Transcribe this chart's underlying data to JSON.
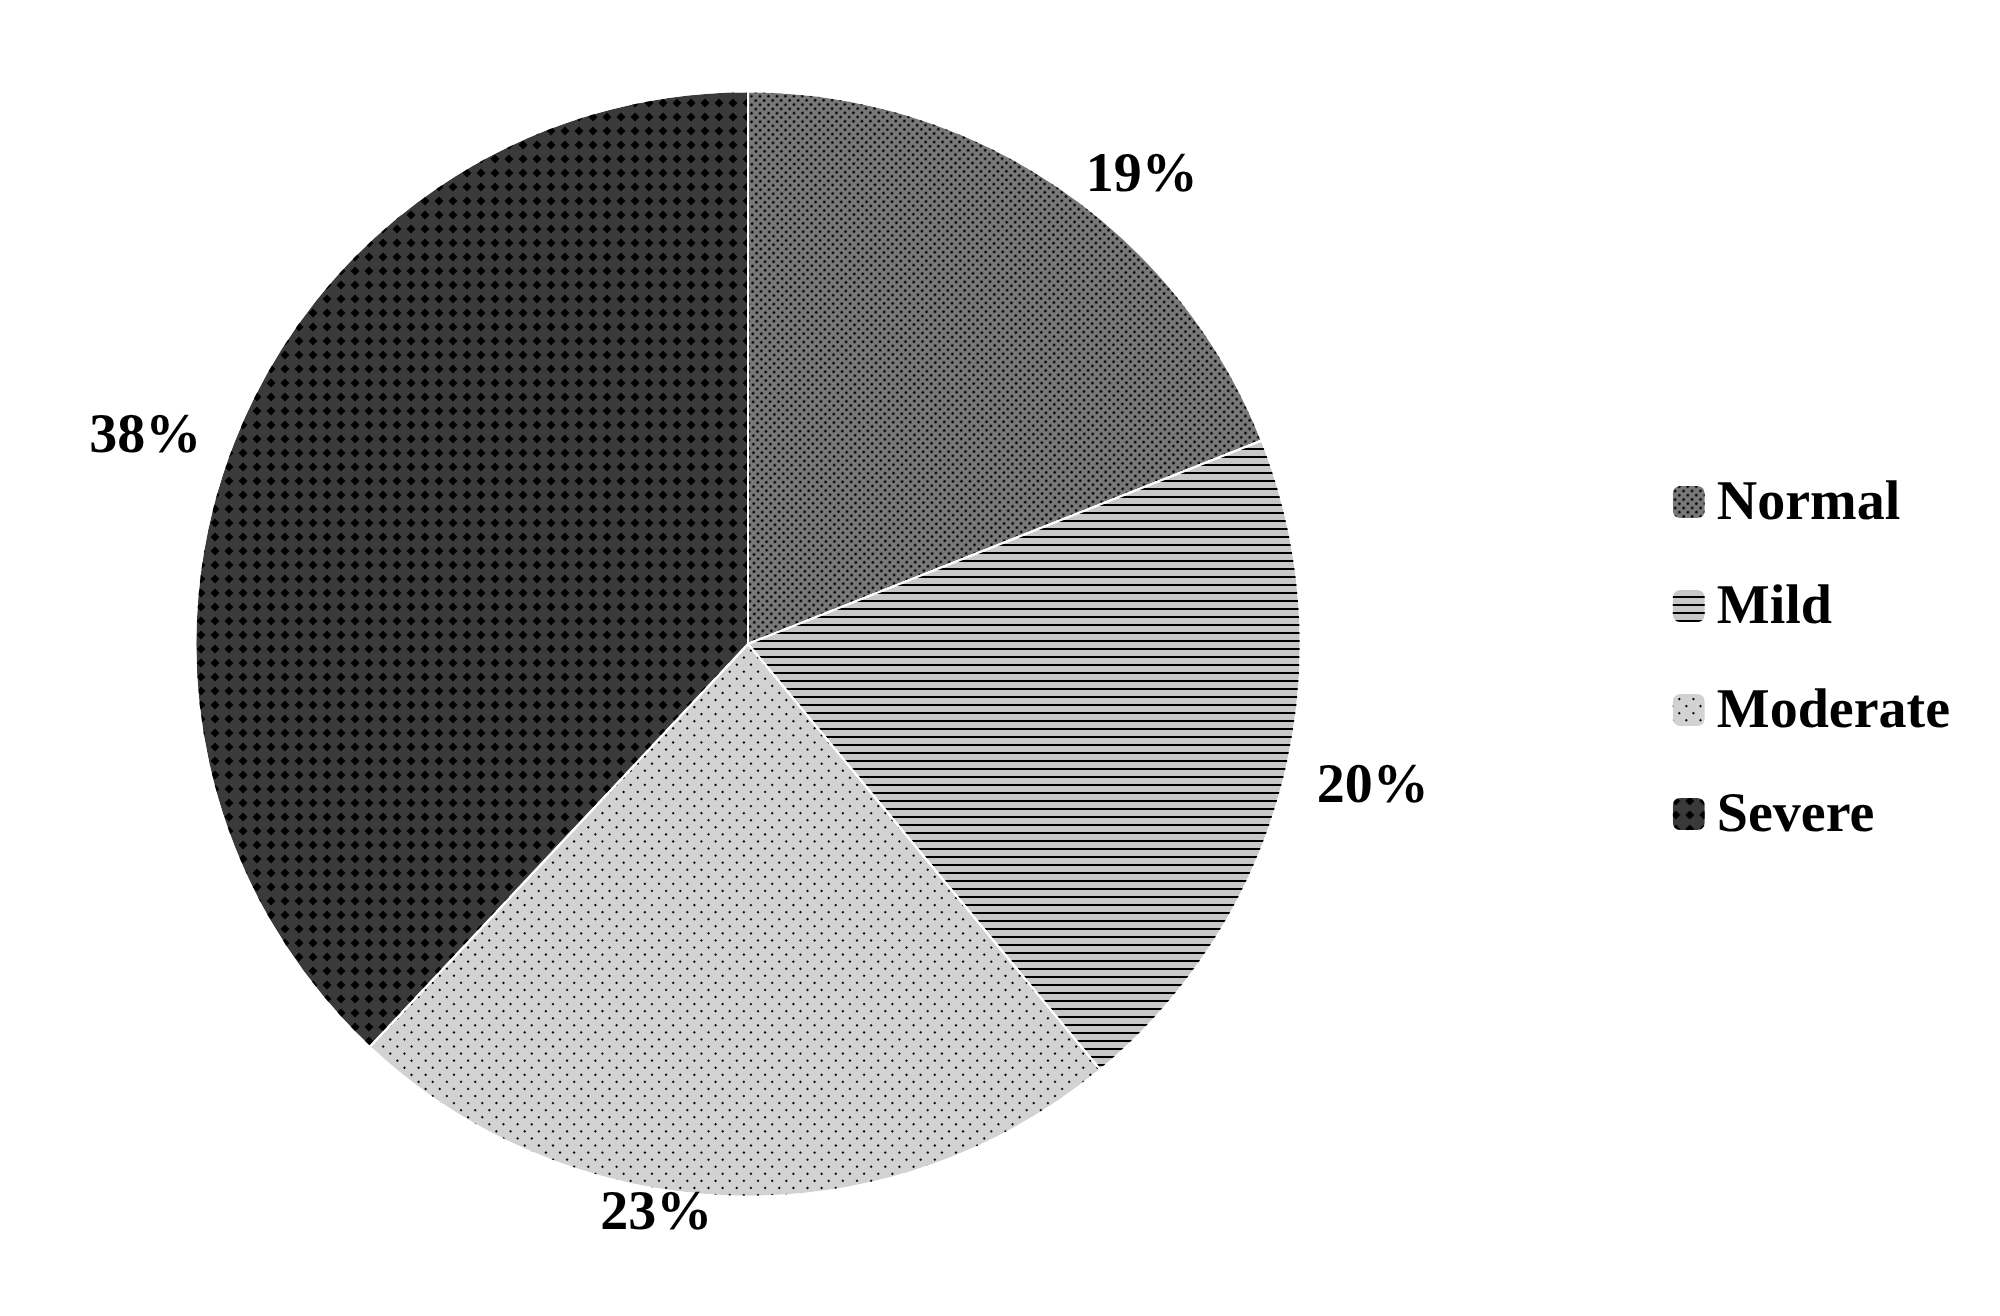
{
  "chart_data": {
    "type": "pie",
    "categories": [
      "Normal",
      "Mild",
      "Moderate",
      "Severe"
    ],
    "values": [
      19,
      20,
      23,
      38
    ],
    "colors": [
      "#7a7a7a",
      "#c8c8c8",
      "#d2d2d2",
      "#3a3a3a"
    ],
    "value_labels": [
      "19%",
      "20%",
      "23%",
      "38%"
    ],
    "legend": "right"
  }
}
